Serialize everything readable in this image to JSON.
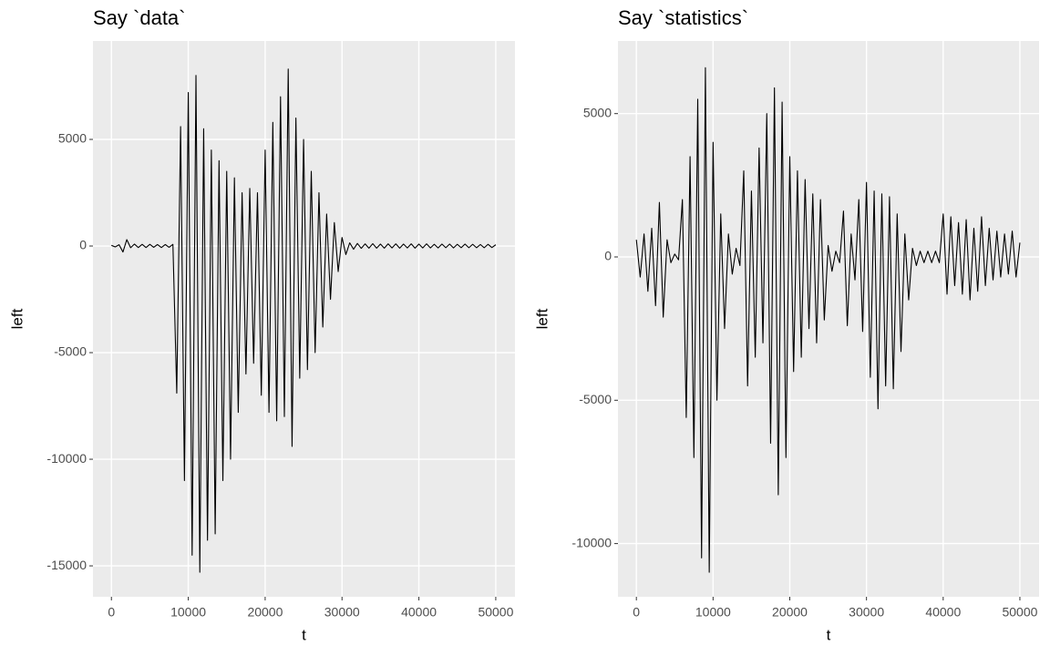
{
  "chart_data": [
    {
      "type": "line",
      "title": "Say `data`",
      "x_label": "t",
      "y_label": "left",
      "x": [
        0,
        500,
        1000,
        1500,
        2000,
        2500,
        3000,
        3500,
        4000,
        4500,
        5000,
        5500,
        6000,
        6500,
        7000,
        7500,
        8000,
        8500,
        9000,
        9500,
        10000,
        10500,
        11000,
        11500,
        12000,
        12500,
        13000,
        13500,
        14000,
        14500,
        15000,
        15500,
        16000,
        16500,
        17000,
        17500,
        18000,
        18500,
        19000,
        19500,
        20000,
        20500,
        21000,
        21500,
        22000,
        22500,
        23000,
        23500,
        24000,
        24500,
        25000,
        25500,
        26000,
        26500,
        27000,
        27500,
        28000,
        28500,
        29000,
        29500,
        30000,
        30500,
        31000,
        31500,
        32000,
        32500,
        33000,
        33500,
        34000,
        34500,
        35000,
        35500,
        36000,
        36500,
        37000,
        37500,
        38000,
        38500,
        39000,
        39500,
        40000,
        40500,
        41000,
        41500,
        42000,
        42500,
        43000,
        43500,
        44000,
        44500,
        45000,
        45500,
        46000,
        46500,
        47000,
        47500,
        48000,
        48500,
        49000,
        49500,
        50000
      ],
      "series": [
        {
          "name": "left",
          "color": "#000000",
          "values": [
            30,
            -40,
            60,
            -280,
            300,
            -80,
            90,
            -70,
            80,
            -70,
            80,
            -60,
            70,
            -70,
            70,
            -60,
            80,
            -6900,
            5600,
            -11000,
            7200,
            -14500,
            8000,
            -15300,
            5500,
            -13800,
            4500,
            -13500,
            4000,
            -11000,
            3500,
            -10000,
            3200,
            -7800,
            2500,
            -6000,
            2700,
            -5500,
            2500,
            -7000,
            4500,
            -7800,
            5800,
            -8200,
            7000,
            -8000,
            8300,
            -9400,
            6000,
            -6200,
            5000,
            -5800,
            3500,
            -5000,
            2500,
            -3800,
            1500,
            -2500,
            1100,
            -1200,
            400,
            -400,
            150,
            -150,
            120,
            -110,
            100,
            -100,
            110,
            -100,
            90,
            -100,
            100,
            -90,
            100,
            -100,
            90,
            -90,
            100,
            -100,
            90,
            -90,
            100,
            -90,
            80,
            -90,
            90,
            -80,
            90,
            -90,
            80,
            -80,
            90,
            -80,
            80,
            -80,
            70,
            -80,
            80,
            -70,
            60
          ]
        }
      ],
      "xlim": [
        -2400,
        52500
      ],
      "ylim": [
        -16450,
        9615
      ],
      "xticks": [
        0,
        10000,
        20000,
        30000,
        40000,
        50000
      ],
      "yticks": [
        -15000,
        -10000,
        -5000,
        0,
        5000
      ],
      "grid": true
    },
    {
      "type": "line",
      "title": "Say `statistics`",
      "x_label": "t",
      "y_label": "left",
      "x": [
        0,
        500,
        1000,
        1500,
        2000,
        2500,
        3000,
        3500,
        4000,
        4500,
        5000,
        5500,
        6000,
        6500,
        7000,
        7500,
        8000,
        8500,
        9000,
        9500,
        10000,
        10500,
        11000,
        11500,
        12000,
        12500,
        13000,
        13500,
        14000,
        14500,
        15000,
        15500,
        16000,
        16500,
        17000,
        17500,
        18000,
        18500,
        19000,
        19500,
        20000,
        20500,
        21000,
        21500,
        22000,
        22500,
        23000,
        23500,
        24000,
        24500,
        25000,
        25500,
        26000,
        26500,
        27000,
        27500,
        28000,
        28500,
        29000,
        29500,
        30000,
        30500,
        31000,
        31500,
        32000,
        32500,
        33000,
        33500,
        34000,
        34500,
        35000,
        35500,
        36000,
        36500,
        37000,
        37500,
        38000,
        38500,
        39000,
        39500,
        40000,
        40500,
        41000,
        41500,
        42000,
        42500,
        43000,
        43500,
        44000,
        44500,
        45000,
        45500,
        46000,
        46500,
        47000,
        47500,
        48000,
        48500,
        49000,
        49500,
        50000
      ],
      "series": [
        {
          "name": "left",
          "color": "#000000",
          "values": [
            600,
            -700,
            800,
            -1200,
            1000,
            -1700,
            1900,
            -2100,
            600,
            -200,
            100,
            -100,
            2000,
            -5600,
            3500,
            -7000,
            5500,
            -10500,
            6600,
            -11000,
            4000,
            -5000,
            1500,
            -2500,
            800,
            -600,
            300,
            -300,
            3000,
            -4500,
            2300,
            -3500,
            3800,
            -3000,
            5000,
            -6500,
            5900,
            -8300,
            5400,
            -7000,
            3500,
            -4000,
            3000,
            -3500,
            2700,
            -2500,
            2200,
            -3000,
            2000,
            -2200,
            400,
            -500,
            200,
            -200,
            1600,
            -2400,
            800,
            -800,
            2000,
            -2600,
            2600,
            -4200,
            2300,
            -5300,
            2200,
            -4500,
            2100,
            -4600,
            1500,
            -3300,
            800,
            -1500,
            300,
            -300,
            200,
            -200,
            200,
            -200,
            200,
            -200,
            1500,
            -1300,
            1400,
            -1000,
            1200,
            -1300,
            1300,
            -1500,
            1000,
            -1200,
            1400,
            -1000,
            1000,
            -800,
            900,
            -700,
            800,
            -600,
            900,
            -700,
            500
          ]
        }
      ],
      "xlim": [
        -2400,
        52500
      ],
      "ylim": [
        -11856,
        7533
      ],
      "xticks": [
        0,
        10000,
        20000,
        30000,
        40000,
        50000
      ],
      "yticks": [
        -10000,
        -5000,
        0,
        5000
      ],
      "grid": true
    }
  ]
}
